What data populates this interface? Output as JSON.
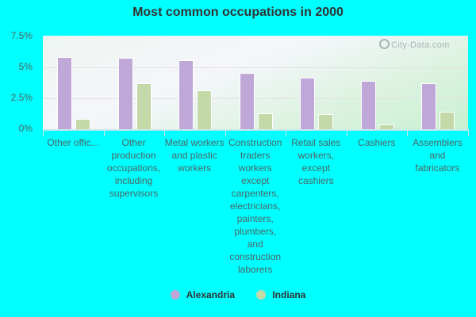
{
  "chart_data": {
    "type": "bar",
    "title": "Most common occupations in 2000",
    "xlabel": "",
    "ylabel": "",
    "ylim": [
      0,
      7.5
    ],
    "y_ticks": [
      "0%",
      "2.5%",
      "5%",
      "7.5%"
    ],
    "grid": true,
    "legend_position": "bottom",
    "categories": [
      "Other offic...",
      "Other production occupations, including supervisors",
      "Metal workers and plastic workers",
      "Construction traders workers except carpenters, electricians, painters, plumbers, and construction laborers",
      "Retail sales workers, except cashiers",
      "Cashiers",
      "Assemblers and fabricators"
    ],
    "series": [
      {
        "name": "Alexandria",
        "color": "#bfa8d8",
        "values": [
          5.8,
          5.7,
          5.5,
          4.5,
          4.1,
          3.9,
          3.7
        ]
      },
      {
        "name": "Indiana",
        "color": "#c4d9a8",
        "values": [
          0.8,
          3.7,
          3.1,
          1.3,
          1.2,
          0.4,
          1.4
        ]
      }
    ],
    "watermark": "City-Data.com"
  }
}
